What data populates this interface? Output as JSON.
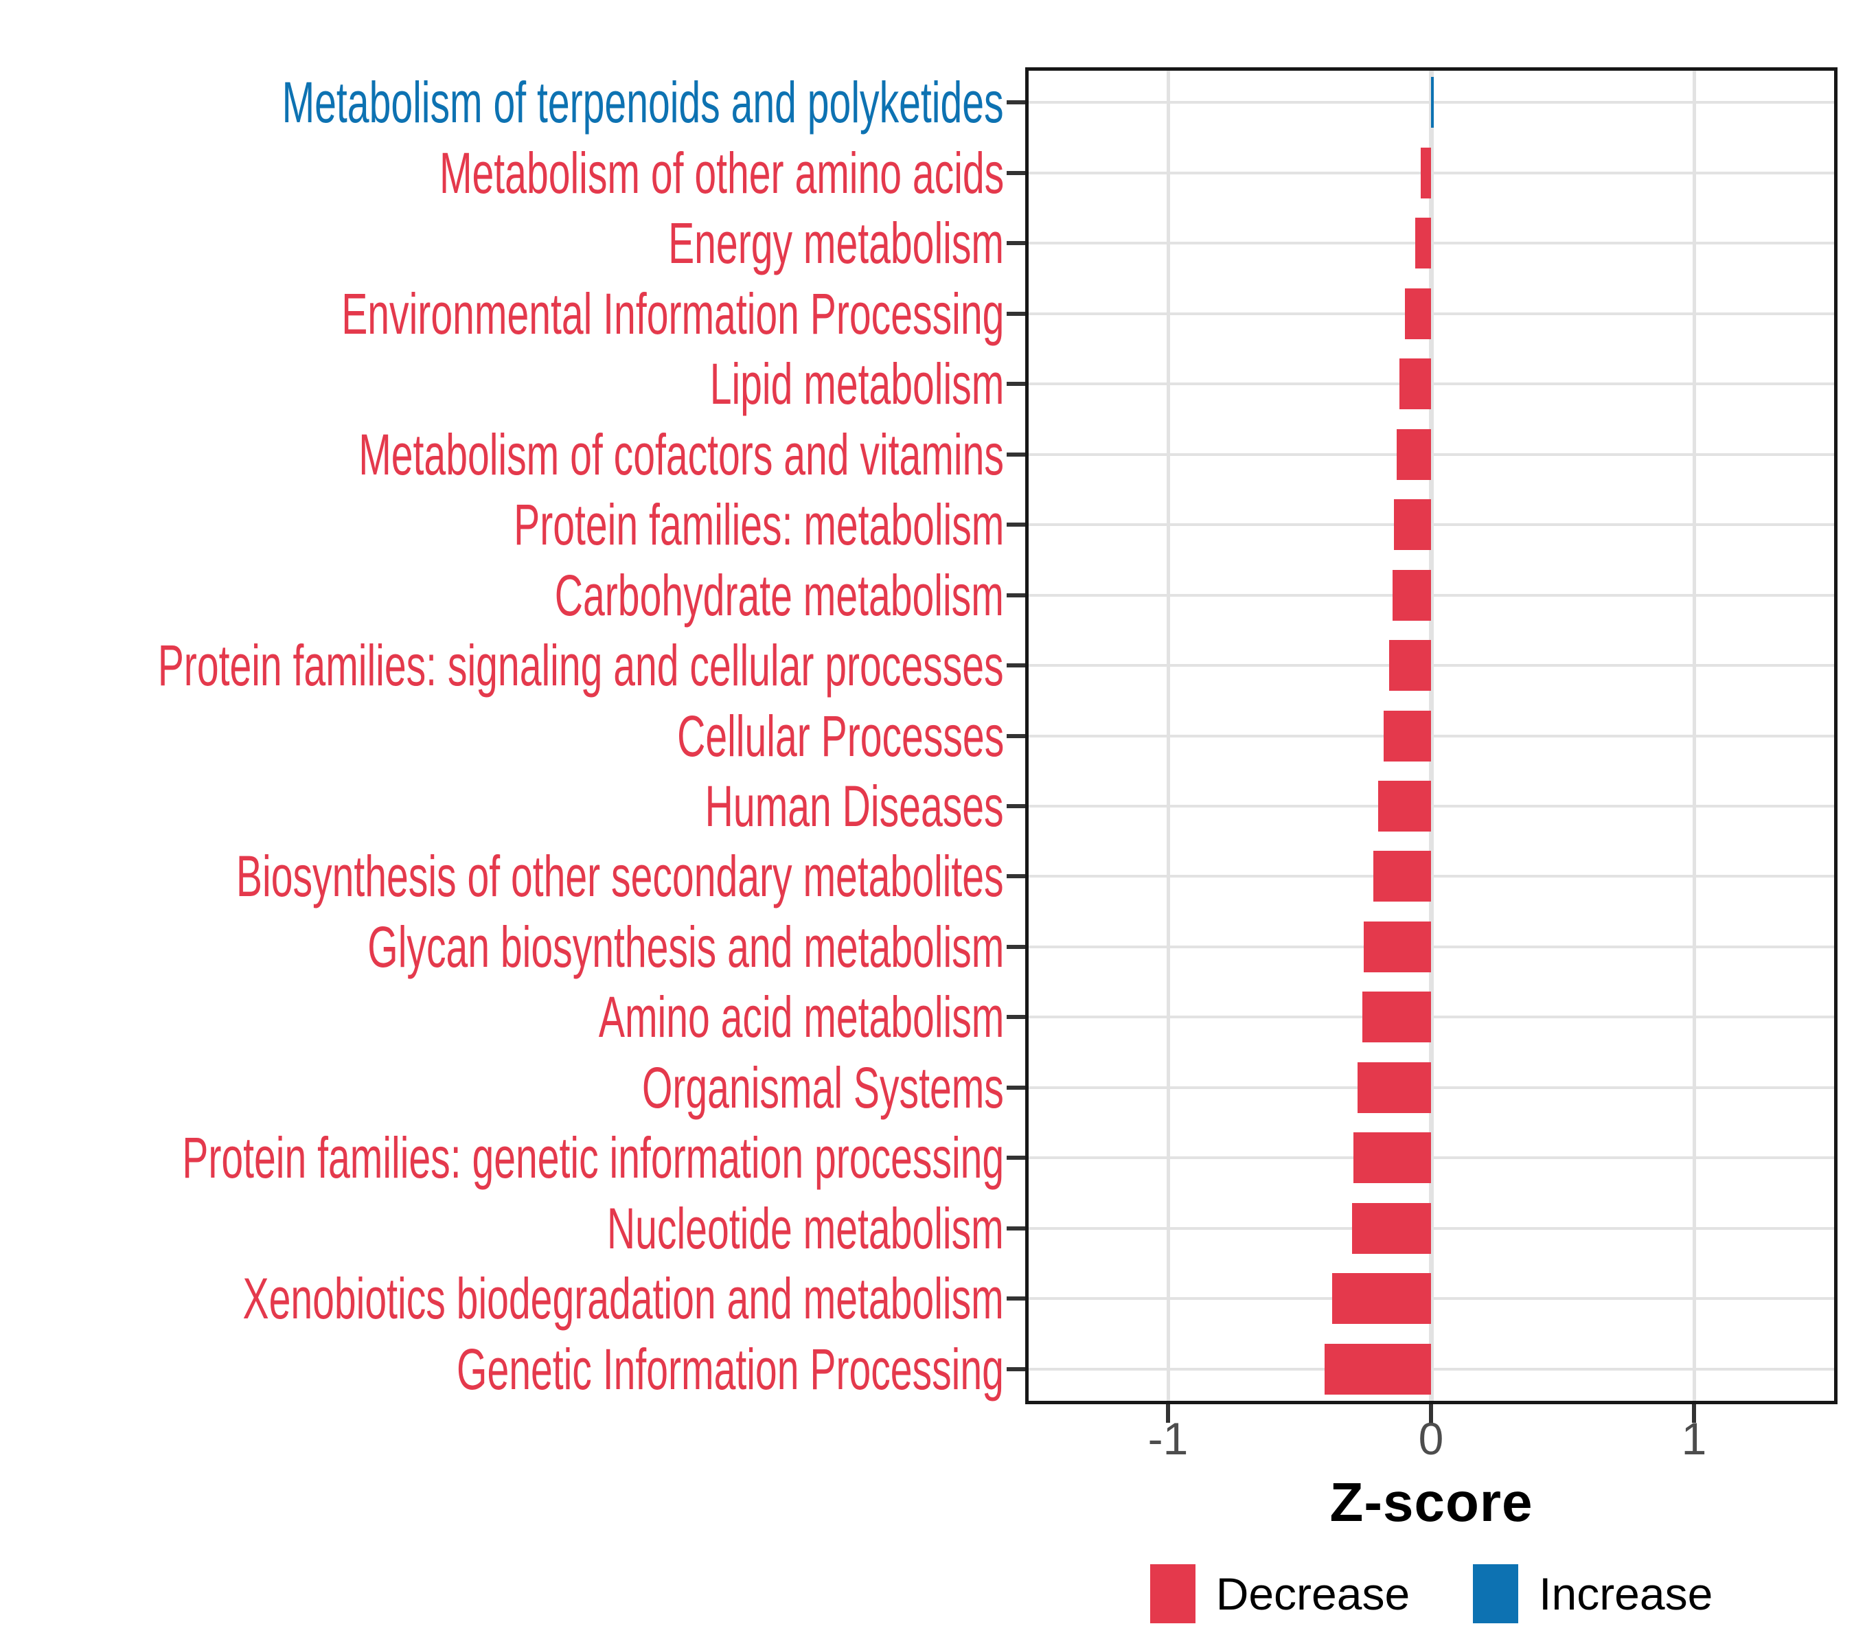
{
  "chart_data": {
    "type": "bar",
    "orientation": "horizontal",
    "title": "",
    "xlabel": "Z-score",
    "ylabel": "",
    "xlim": [
      -1.54,
      1.55
    ],
    "x_ticks": [
      -1,
      0,
      1
    ],
    "x_tick_labels": [
      "-1",
      "0",
      "1"
    ],
    "grid": "major-only",
    "legend_position": "bottom",
    "categories": [
      "Metabolism of terpenoids and polyketides",
      "Metabolism of other amino acids",
      "Energy metabolism",
      "Environmental Information Processing",
      "Lipid metabolism",
      "Metabolism of cofactors and vitamins",
      "Protein families: metabolism",
      "Carbohydrate metabolism",
      "Protein families: signaling and cellular processes",
      "Cellular Processes",
      "Human Diseases",
      "Biosynthesis of other secondary metabolites",
      "Glycan biosynthesis and metabolism",
      "Amino acid metabolism",
      "Organismal Systems",
      "Protein families: genetic information processing",
      "Nucleotide metabolism",
      "Xenobiotics biodegradation and metabolism",
      "Genetic Information Processing"
    ],
    "values": [
      0.005,
      -0.04,
      -0.06,
      -0.1,
      -0.12,
      -0.13,
      -0.14,
      -0.145,
      -0.16,
      -0.18,
      -0.2,
      -0.22,
      -0.255,
      -0.26,
      -0.28,
      -0.295,
      -0.3,
      -0.375,
      -0.405
    ],
    "directions": [
      "Increase",
      "Decrease",
      "Decrease",
      "Decrease",
      "Decrease",
      "Decrease",
      "Decrease",
      "Decrease",
      "Decrease",
      "Decrease",
      "Decrease",
      "Decrease",
      "Decrease",
      "Decrease",
      "Decrease",
      "Decrease",
      "Decrease",
      "Decrease",
      "Decrease"
    ]
  },
  "axis": {
    "x_title": "Z-score"
  },
  "legend": {
    "decrease_label": "Decrease",
    "increase_label": "Increase"
  },
  "colors": {
    "decrease": "#e4394c",
    "increase": "#0d72b2",
    "gridline": "#e2e2e2",
    "tick": "#333333",
    "tick_text": "#4d4d4d",
    "panel_border": "#171717"
  }
}
